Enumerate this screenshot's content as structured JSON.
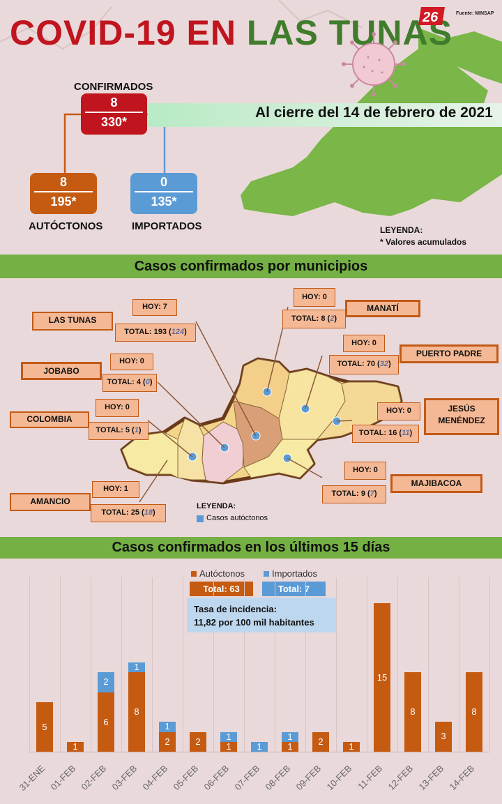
{
  "header": {
    "title_part1": "COVID-19 EN",
    "title_part2": "LAS TUNAS",
    "logo_text": "26",
    "source": "Fuente: MINSAP"
  },
  "summary": {
    "confirmados": {
      "label": "CONFIRMADOS",
      "today": "8",
      "total": "330*"
    },
    "autoctonos": {
      "label": "AUTÓCTONOS",
      "today": "8",
      "total": "195*"
    },
    "importados": {
      "label": "IMPORTADOS",
      "today": "0",
      "total": "135*"
    },
    "date_text": "Al cierre del 14 de febrero de 2021",
    "legend_title": "LEYENDA:",
    "legend_text": "* Valores acumulados"
  },
  "municipios_section": {
    "title": "Casos confirmados por municipios",
    "legend_title": "LEYENDA:",
    "legend_text": "Casos autóctonos",
    "items": [
      {
        "name": "LAS TUNAS",
        "hoy": "HOY: 7",
        "total_a": "TOTAL: 193 (",
        "total_b": "124",
        "total_c": ")"
      },
      {
        "name": "MANATÍ",
        "hoy": "HOY: 0",
        "total_a": "TOTAL: 8 (",
        "total_b": "2",
        "total_c": ")"
      },
      {
        "name": "PUERTO PADRE",
        "hoy": "HOY: 0",
        "total_a": "TOTAL: 70 (",
        "total_b": "32",
        "total_c": ")"
      },
      {
        "name": "JOBABO",
        "hoy": "HOY: 0",
        "total_a": "TOTAL: 4 (",
        "total_b": "0",
        "total_c": ")"
      },
      {
        "name": "JESÚS MENÉNDEZ",
        "hoy": "HOY: 0",
        "total_a": "TOTAL: 16 (",
        "total_b": "11",
        "total_c": ")"
      },
      {
        "name": "COLOMBIA",
        "hoy": "HOY: 0",
        "total_a": "TOTAL: 5 (",
        "total_b": "1",
        "total_c": ")"
      },
      {
        "name": "MAJIBACOA",
        "hoy": "HOY: 0",
        "total_a": "TOTAL: 9 (",
        "total_b": "7",
        "total_c": ")"
      },
      {
        "name": "AMANCIO",
        "hoy": "HOY: 1",
        "total_a": "TOTAL: 25 (",
        "total_b": "18",
        "total_c": ")"
      }
    ]
  },
  "chart_section": {
    "title": "Casos confirmados en los últimos 15 días",
    "legend_autoctonos": "Autóctonos",
    "legend_importados": "Importados",
    "total_autoctonos": "Total: 63",
    "total_importados": "Total: 7",
    "tasa_line1": "Tasa de incidencia:",
    "tasa_line2": "11,82 por 100 mil habitantes"
  },
  "colors": {
    "autoctonos": "#c55a11",
    "importados": "#5b9bd5",
    "title_red": "#c0141e",
    "title_green": "#3f7d2c",
    "band_green": "#74b043"
  },
  "chart_data": {
    "type": "bar",
    "stacked": true,
    "categories": [
      "31-ENE",
      "01-FEB",
      "02-FEB",
      "03-FEB",
      "04-FEB",
      "05-FEB",
      "06-FEB",
      "07-FEB",
      "08-FEB",
      "09-FEB",
      "10-FEB",
      "11-FEB",
      "12-FEB",
      "13-FEB",
      "14-FEB"
    ],
    "series": [
      {
        "name": "Autóctonos",
        "values": [
          5,
          1,
          6,
          8,
          2,
          2,
          1,
          0,
          1,
          2,
          1,
          15,
          8,
          3,
          8
        ]
      },
      {
        "name": "Importados",
        "values": [
          0,
          0,
          2,
          1,
          1,
          0,
          1,
          1,
          1,
          0,
          0,
          0,
          0,
          0,
          0
        ]
      }
    ],
    "title": "Casos confirmados en los últimos 15 días",
    "ylim": [
      0,
      16
    ],
    "grid": "vertical",
    "legend": "top-center"
  }
}
